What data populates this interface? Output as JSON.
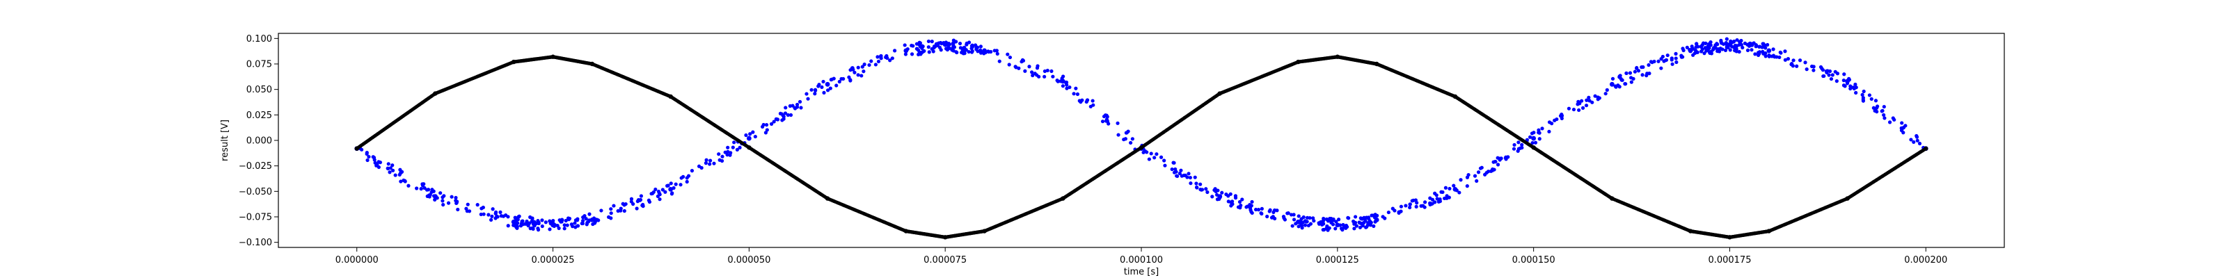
{
  "chart_data": {
    "type": "scatter",
    "title": "",
    "xlabel": "time [s]",
    "ylabel": "result [V]",
    "xlim": [
      -1e-05,
      0.00021
    ],
    "ylim": [
      -0.105,
      0.105
    ],
    "grid": false,
    "x_ticks": [
      0,
      2.5e-05,
      5e-05,
      7.5e-05,
      0.0001,
      0.000125,
      0.00015,
      0.000175,
      0.0002
    ],
    "x_tick_labels": [
      "0.000000",
      "0.000025",
      "0.000050",
      "0.000075",
      "0.000100",
      "0.000125",
      "0.000150",
      "0.000175",
      "0.000200"
    ],
    "y_ticks": [
      -0.1,
      -0.075,
      -0.05,
      -0.025,
      0,
      0.025,
      0.05,
      0.075,
      0.1
    ],
    "y_tick_labels": [
      "−0.100",
      "−0.075",
      "−0.050",
      "−0.025",
      "0.000",
      "0.025",
      "0.050",
      "0.075",
      "0.100"
    ],
    "series": [
      {
        "color": "#0000ff",
        "marker": "dot-scatter",
        "x": [
          0,
          1e-05,
          2e-05,
          2.5e-05,
          3e-05,
          4e-05,
          5e-05,
          6e-05,
          7e-05,
          7.5e-05,
          8e-05,
          9e-05,
          0.0001,
          0.00011,
          0.00012,
          0.000125,
          0.00013,
          0.00014,
          0.00015,
          0.00016,
          0.00017,
          0.000175,
          0.00018,
          0.00019,
          0.0002
        ],
        "y": [
          -0.008,
          -0.055,
          -0.08,
          -0.083,
          -0.078,
          -0.048,
          0.002,
          0.055,
          0.088,
          0.094,
          0.088,
          0.058,
          -0.008,
          -0.055,
          -0.08,
          -0.083,
          -0.078,
          -0.048,
          0.002,
          0.055,
          0.088,
          0.094,
          0.088,
          0.058,
          -0.008
        ]
      },
      {
        "color": "#000000",
        "marker": "dot-line",
        "x": [
          0,
          1e-05,
          2e-05,
          2.5e-05,
          3e-05,
          4e-05,
          5e-05,
          6e-05,
          7e-05,
          7.5e-05,
          8e-05,
          9e-05,
          0.0001,
          0.00011,
          0.00012,
          0.000125,
          0.00013,
          0.00014,
          0.00015,
          0.00016,
          0.00017,
          0.000175,
          0.00018,
          0.00019,
          0.0002
        ],
        "y": [
          -0.008,
          0.046,
          0.077,
          0.082,
          0.075,
          0.043,
          -0.007,
          -0.057,
          -0.089,
          -0.095,
          -0.089,
          -0.057,
          -0.007,
          0.046,
          0.077,
          0.082,
          0.075,
          0.043,
          -0.007,
          -0.057,
          -0.089,
          -0.095,
          -0.089,
          -0.057,
          -0.008
        ]
      }
    ]
  }
}
